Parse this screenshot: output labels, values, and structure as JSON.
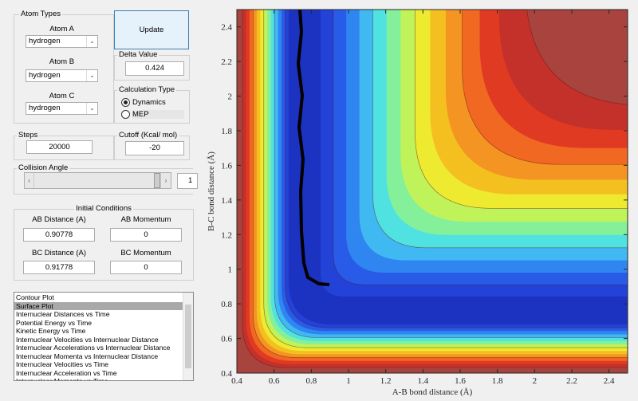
{
  "atom_types": {
    "title": "Atom Types",
    "atoms": [
      {
        "label": "Atom A",
        "value": "hydrogen"
      },
      {
        "label": "Atom B",
        "value": "hydrogen"
      },
      {
        "label": "Atom C",
        "value": "hydrogen"
      }
    ]
  },
  "update_button": "Update",
  "delta_value": {
    "title": "Delta Value",
    "value": "0.424"
  },
  "calculation_type": {
    "title": "Calculation Type",
    "options": [
      "Dynamics",
      "MEP"
    ],
    "selected": 0
  },
  "steps": {
    "title": "Steps",
    "value": "20000"
  },
  "cutoff": {
    "title": "Cutoff (Kcal/ mol)",
    "value": "-20"
  },
  "collision_angle": {
    "title": "Collision Angle",
    "value": "1"
  },
  "initial_conditions": {
    "title": "Initial Conditions",
    "fields": [
      {
        "label": "AB Distance (A)",
        "value": "0.90778"
      },
      {
        "label": "AB Momentum",
        "value": "0"
      },
      {
        "label": "BC Distance (A)",
        "value": "0.91778"
      },
      {
        "label": "BC Momentum",
        "value": "0"
      }
    ]
  },
  "plot_list": {
    "items": [
      "Contour Plot",
      "Surface Plot",
      "Internuclear Distances vs Time",
      "Potential Energy vs Time",
      "Kinetic Energy vs Time",
      "Internuclear Velocities vs Internuclear Distance",
      "Internuclear Accelerations vs Internuclear Distance",
      "Internuclear Momenta vs Internuclear Distance",
      "Internuclear Velocities vs Time",
      "Internuclear Acceleration vs Time",
      "Internuclear Momenta vs Time"
    ],
    "selected": 1
  },
  "plot": {
    "type": "contour",
    "xlabel": "A-B bond distance (Å)",
    "ylabel": "B-C bond distance (Å)",
    "xlim": [
      0.4,
      2.5
    ],
    "ylim": [
      0.4,
      2.5
    ],
    "xticks": [
      0.4,
      0.6,
      0.8,
      1,
      1.2,
      1.4,
      1.6,
      1.8,
      2,
      2.2,
      2.4
    ],
    "yticks": [
      0.4,
      0.6,
      0.8,
      1,
      1.2,
      1.4,
      1.6,
      1.8,
      2,
      2.2,
      2.4
    ]
  }
}
